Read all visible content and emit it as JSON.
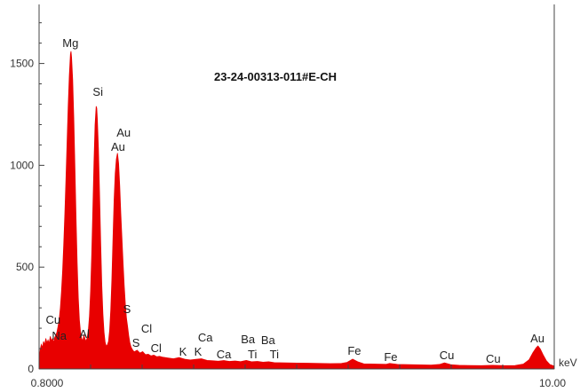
{
  "chart_data": {
    "type": "area",
    "title": "23-24-00313-011#E-CH",
    "xlabel": "keV",
    "ylabel": "",
    "xlim": [
      0.8,
      10.0
    ],
    "ylim": [
      0,
      1790
    ],
    "grid": false,
    "series_color": "#e80000",
    "xticks": [
      {
        "value": 0.8,
        "label": "0.8000"
      },
      {
        "value": 10.0,
        "label": "10.00"
      }
    ],
    "yticks": [
      {
        "value": 0,
        "label": "0"
      },
      {
        "value": 500,
        "label": "500"
      },
      {
        "value": 1000,
        "label": "1000"
      },
      {
        "value": 1500,
        "label": "1500"
      }
    ],
    "points": [
      [
        0.8,
        40
      ],
      [
        0.82,
        95
      ],
      [
        0.84,
        120
      ],
      [
        0.86,
        105
      ],
      [
        0.88,
        135
      ],
      [
        0.9,
        118
      ],
      [
        0.92,
        150
      ],
      [
        0.94,
        128
      ],
      [
        0.96,
        142
      ],
      [
        0.98,
        125
      ],
      [
        1.0,
        160
      ],
      [
        1.02,
        138
      ],
      [
        1.04,
        148
      ],
      [
        1.06,
        130
      ],
      [
        1.08,
        155
      ],
      [
        1.1,
        165
      ],
      [
        1.12,
        182
      ],
      [
        1.14,
        210
      ],
      [
        1.16,
        245
      ],
      [
        1.18,
        300
      ],
      [
        1.2,
        380
      ],
      [
        1.22,
        480
      ],
      [
        1.24,
        610
      ],
      [
        1.26,
        760
      ],
      [
        1.28,
        930
      ],
      [
        1.3,
        1110
      ],
      [
        1.32,
        1290
      ],
      [
        1.34,
        1440
      ],
      [
        1.36,
        1545
      ],
      [
        1.37,
        1560
      ],
      [
        1.38,
        1530
      ],
      [
        1.4,
        1420
      ],
      [
        1.42,
        1230
      ],
      [
        1.44,
        990
      ],
      [
        1.46,
        740
      ],
      [
        1.48,
        520
      ],
      [
        1.5,
        350
      ],
      [
        1.52,
        240
      ],
      [
        1.54,
        180
      ],
      [
        1.56,
        150
      ],
      [
        1.58,
        138
      ],
      [
        1.6,
        165
      ],
      [
        1.62,
        148
      ],
      [
        1.64,
        135
      ],
      [
        1.66,
        155
      ],
      [
        1.68,
        190
      ],
      [
        1.7,
        260
      ],
      [
        1.72,
        380
      ],
      [
        1.74,
        560
      ],
      [
        1.76,
        780
      ],
      [
        1.78,
        1010
      ],
      [
        1.8,
        1200
      ],
      [
        1.82,
        1290
      ],
      [
        1.83,
        1280
      ],
      [
        1.84,
        1230
      ],
      [
        1.86,
        1080
      ],
      [
        1.88,
        860
      ],
      [
        1.9,
        620
      ],
      [
        1.92,
        410
      ],
      [
        1.94,
        270
      ],
      [
        1.96,
        180
      ],
      [
        1.98,
        130
      ],
      [
        2.0,
        112
      ],
      [
        2.02,
        118
      ],
      [
        2.04,
        135
      ],
      [
        2.06,
        190
      ],
      [
        2.08,
        290
      ],
      [
        2.1,
        440
      ],
      [
        2.12,
        640
      ],
      [
        2.14,
        830
      ],
      [
        2.16,
        960
      ],
      [
        2.18,
        1030
      ],
      [
        2.2,
        1060
      ],
      [
        2.22,
        1010
      ],
      [
        2.24,
        900
      ],
      [
        2.26,
        760
      ],
      [
        2.28,
        640
      ],
      [
        2.3,
        520
      ],
      [
        2.32,
        410
      ],
      [
        2.34,
        320
      ],
      [
        2.36,
        250
      ],
      [
        2.38,
        210
      ],
      [
        2.4,
        165
      ],
      [
        2.42,
        130
      ],
      [
        2.44,
        110
      ],
      [
        2.46,
        98
      ],
      [
        2.48,
        90
      ],
      [
        2.5,
        84
      ],
      [
        2.55,
        92
      ],
      [
        2.6,
        78
      ],
      [
        2.65,
        85
      ],
      [
        2.7,
        70
      ],
      [
        2.75,
        72
      ],
      [
        2.8,
        64
      ],
      [
        2.85,
        68
      ],
      [
        2.9,
        60
      ],
      [
        2.95,
        62
      ],
      [
        3.0,
        58
      ],
      [
        3.1,
        54
      ],
      [
        3.2,
        50
      ],
      [
        3.3,
        56
      ],
      [
        3.4,
        48
      ],
      [
        3.5,
        44
      ],
      [
        3.6,
        47
      ],
      [
        3.7,
        50
      ],
      [
        3.8,
        42
      ],
      [
        3.9,
        40
      ],
      [
        4.0,
        38
      ],
      [
        4.1,
        41
      ],
      [
        4.2,
        37
      ],
      [
        4.3,
        39
      ],
      [
        4.4,
        36
      ],
      [
        4.5,
        42
      ],
      [
        4.6,
        35
      ],
      [
        4.7,
        37
      ],
      [
        4.8,
        33
      ],
      [
        4.9,
        35
      ],
      [
        5.0,
        31
      ],
      [
        5.2,
        30
      ],
      [
        5.4,
        29
      ],
      [
        5.6,
        28
      ],
      [
        5.8,
        27
      ],
      [
        6.0,
        26
      ],
      [
        6.2,
        27
      ],
      [
        6.3,
        32
      ],
      [
        6.4,
        48
      ],
      [
        6.5,
        34
      ],
      [
        6.6,
        25
      ],
      [
        6.8,
        24
      ],
      [
        7.0,
        23
      ],
      [
        7.06,
        27
      ],
      [
        7.2,
        22
      ],
      [
        7.4,
        21
      ],
      [
        7.6,
        20
      ],
      [
        7.8,
        19
      ],
      [
        7.95,
        22
      ],
      [
        8.04,
        30
      ],
      [
        8.15,
        21
      ],
      [
        8.3,
        18
      ],
      [
        8.5,
        17
      ],
      [
        8.7,
        16
      ],
      [
        8.9,
        18
      ],
      [
        9.1,
        16
      ],
      [
        9.3,
        17
      ],
      [
        9.45,
        24
      ],
      [
        9.55,
        45
      ],
      [
        9.62,
        80
      ],
      [
        9.68,
        105
      ],
      [
        9.71,
        113
      ],
      [
        9.75,
        98
      ],
      [
        9.8,
        70
      ],
      [
        9.86,
        40
      ],
      [
        9.92,
        22
      ],
      [
        10.0,
        14
      ]
    ],
    "annotations": [
      {
        "text": "Mg",
        "x": 1.36
      },
      {
        "text": "Si",
        "x": 1.85
      },
      {
        "text": "Au",
        "x": 2.31
      },
      {
        "text": "Au",
        "x": 2.21
      },
      {
        "text": "Cu",
        "x": 1.05
      },
      {
        "text": "Na",
        "x": 1.16
      },
      {
        "text": "Al",
        "x": 1.61
      },
      {
        "text": "S",
        "x": 2.37
      },
      {
        "text": "S",
        "x": 2.53
      },
      {
        "text": "Cl",
        "x": 2.72
      },
      {
        "text": "Cl",
        "x": 2.89
      },
      {
        "text": "K",
        "x": 3.37
      },
      {
        "text": "K",
        "x": 3.64
      },
      {
        "text": "Ca",
        "x": 3.77
      },
      {
        "text": "Ca",
        "x": 4.1
      },
      {
        "text": "Ba",
        "x": 4.53
      },
      {
        "text": "Ti",
        "x": 4.61
      },
      {
        "text": "Ba",
        "x": 4.89
      },
      {
        "text": "Ti",
        "x": 5.0
      },
      {
        "text": "Fe",
        "x": 6.43
      },
      {
        "text": "Fe",
        "x": 7.08
      },
      {
        "text": "Cu",
        "x": 8.08
      },
      {
        "text": "Cu",
        "x": 8.91
      },
      {
        "text": "Au",
        "x": 9.7
      }
    ]
  }
}
